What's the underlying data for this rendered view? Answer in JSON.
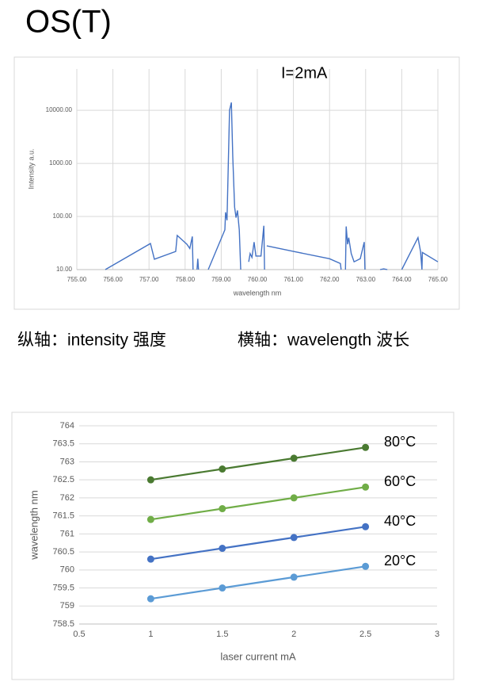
{
  "page": {
    "title": "OS(T)",
    "notes": [
      "纵轴：intensity 强度",
      "横轴：wavelength 波长"
    ]
  },
  "chart_data": [
    {
      "type": "line",
      "annotation": "I=2mA",
      "x_label": "wavelength nm",
      "y_label": "Intensity a.u.",
      "yscale": "log",
      "grid": [
        "x",
        "y"
      ],
      "color": "#4472c4",
      "x": [
        755.79,
        757.04,
        757.15,
        757.74,
        757.78,
        758.05,
        758.13,
        758.2,
        758.22,
        758.28,
        758.33,
        758.35,
        758.37,
        758.5,
        758.64,
        759.1,
        759.12,
        759.16,
        759.23,
        759.28,
        759.32,
        759.37,
        759.41,
        759.45,
        759.5,
        759.54,
        759.65,
        759.76,
        759.8,
        759.85,
        759.91,
        759.96,
        760.1,
        760.18,
        760.2,
        760.23,
        760.26,
        761,
        762,
        762.3,
        762.32,
        762.4,
        762.44,
        762.46,
        762.5,
        762.53,
        762.6,
        762.68,
        762.85,
        762.96,
        762.98,
        763.2,
        763.4,
        763.5,
        763.6,
        763.8,
        764,
        764.45,
        764.52,
        764.56,
        764.57,
        765
      ],
      "values": [
        10,
        31,
        15.7,
        22,
        44,
        30,
        25,
        42,
        10,
        null,
        10,
        16,
        10,
        null,
        10,
        56,
        120,
        85,
        10000,
        14000,
        1300,
        150,
        95,
        130,
        56,
        10,
        null,
        14,
        20,
        17,
        33,
        18,
        18,
        67,
        10,
        null,
        28,
        22,
        16,
        13,
        10,
        null,
        10,
        65,
        30,
        40,
        20,
        14,
        16,
        33,
        10,
        null,
        10,
        10.3,
        10,
        null,
        10,
        40,
        22,
        10,
        21,
        14
      ],
      "xlim": [
        755,
        765
      ],
      "xticks": [
        {
          "value": 755,
          "label": "755.00"
        },
        {
          "value": 756,
          "label": "756.00"
        },
        {
          "value": 757,
          "label": "757.00"
        },
        {
          "value": 758,
          "label": "758.00"
        },
        {
          "value": 759,
          "label": "759.00"
        },
        {
          "value": 760,
          "label": "760.00"
        },
        {
          "value": 761,
          "label": "761.00"
        },
        {
          "value": 762,
          "label": "762.00"
        },
        {
          "value": 763,
          "label": "763.00"
        },
        {
          "value": 764,
          "label": "764.00"
        },
        {
          "value": 765,
          "label": "765.00"
        }
      ],
      "ylim": [
        10,
        60000
      ],
      "yticks": [
        {
          "value": 10,
          "label": "10.00"
        },
        {
          "value": 100,
          "label": "100.00"
        },
        {
          "value": 1000,
          "label": "1000.00"
        },
        {
          "value": 10000,
          "label": "10000.00"
        }
      ]
    },
    {
      "type": "line",
      "x_label": "laser current mA",
      "y_label": "wavelength nm",
      "grid": [
        "y"
      ],
      "markers": true,
      "x": [
        1,
        1.5,
        2,
        2.5
      ],
      "series": [
        {
          "name": "20°C",
          "color": "#5b9bd5",
          "values": [
            759.2,
            759.5,
            759.8,
            760.1
          ]
        },
        {
          "name": "40°C",
          "color": "#4472c4",
          "values": [
            760.3,
            760.6,
            760.9,
            761.2
          ]
        },
        {
          "name": "60°C",
          "color": "#70ad47",
          "values": [
            761.4,
            761.7,
            762,
            762.3
          ]
        },
        {
          "name": "80°C",
          "color": "#4a7a31",
          "values": [
            762.5,
            762.8,
            763.1,
            763.4
          ]
        }
      ],
      "xlim": [
        0.5,
        3
      ],
      "xticks": [
        0.5,
        1,
        1.5,
        2,
        2.5,
        3
      ],
      "ylim": [
        758.5,
        764
      ],
      "yticks": [
        758.5,
        759,
        759.5,
        760,
        760.5,
        761,
        761.5,
        762,
        762.5,
        763,
        763.5,
        764
      ]
    }
  ]
}
